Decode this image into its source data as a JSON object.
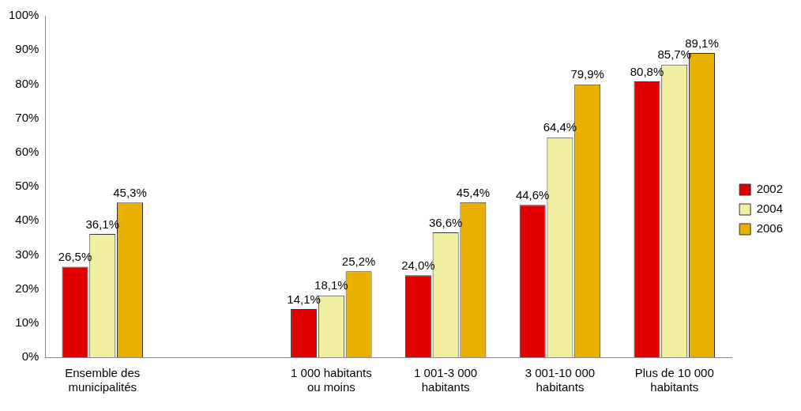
{
  "chart_data": {
    "type": "bar",
    "categories": [
      "Ensemble des municipalités",
      null,
      "1 000 habitants ou moins",
      "1 001-3 000 habitants",
      "3 001-10 000 habitants",
      "Plus de 10 000 habitants"
    ],
    "series": [
      {
        "name": "2002",
        "color": "#e00000",
        "values": [
          26.5,
          null,
          14.1,
          24.0,
          44.6,
          80.8
        ],
        "value_labels": [
          "26,5%",
          null,
          "14,1%",
          "24,0%",
          "44,6%",
          "80,8%"
        ]
      },
      {
        "name": "2004",
        "color": "#f0f0a0",
        "values": [
          36.1,
          null,
          18.1,
          36.6,
          64.4,
          85.7
        ],
        "value_labels": [
          "36,1%",
          null,
          "18,1%",
          "36,6%",
          "64,4%",
          "85,7%"
        ]
      },
      {
        "name": "2006",
        "color": "#e8b000",
        "values": [
          45.3,
          null,
          25.2,
          45.4,
          79.9,
          89.1
        ],
        "value_labels": [
          "45,3%",
          null,
          "25,2%",
          "45,4%",
          "79,9%",
          "89,1%"
        ]
      }
    ],
    "ylim": [
      0,
      100
    ],
    "yticks": [
      {
        "value": 0,
        "label": "0%"
      },
      {
        "value": 10,
        "label": "10%"
      },
      {
        "value": 20,
        "label": "20%"
      },
      {
        "value": 30,
        "label": "30%"
      },
      {
        "value": 40,
        "label": "40%"
      },
      {
        "value": 50,
        "label": "50%"
      },
      {
        "value": 60,
        "label": "60%"
      },
      {
        "value": 70,
        "label": "70%"
      },
      {
        "value": 80,
        "label": "80%"
      },
      {
        "value": 90,
        "label": "90%"
      },
      {
        "value": 100,
        "label": "100%"
      }
    ],
    "grid": false,
    "legend": "right"
  }
}
